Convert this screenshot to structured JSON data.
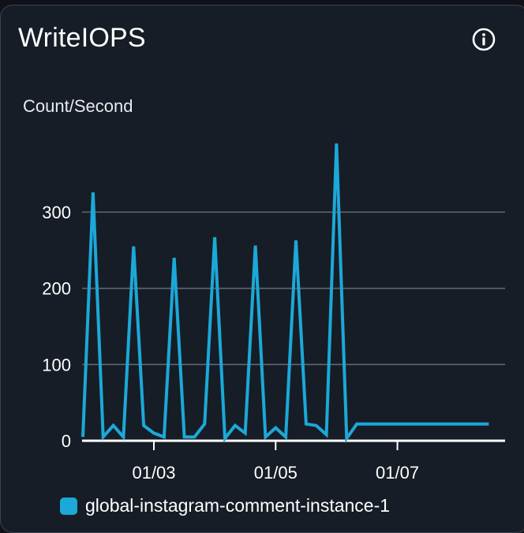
{
  "widget": {
    "title": "WriteIOPS",
    "info_icon": "info-icon",
    "unit_label": "Count/Second"
  },
  "colors": {
    "background": "#161d26",
    "series": "#1ca8d8",
    "grid": "#5f6673",
    "axis": "#ffffff",
    "text": "#ffffff"
  },
  "chart_data": {
    "type": "line",
    "title": "WriteIOPS",
    "ylabel": "Count/Second",
    "xlabel": "",
    "ylim": [
      0,
      400
    ],
    "yticks": [
      0,
      100,
      200,
      300
    ],
    "xlim": [
      "01/01 20:00",
      "01/08 20:00"
    ],
    "xticks": [
      "01/03",
      "01/05",
      "01/07"
    ],
    "grid": true,
    "legend": "bottom",
    "series": [
      {
        "name": "global-instagram-comment-instance-1",
        "color": "#1ca8d8",
        "x": [
          "01/01 20:00",
          "01/02 00:00",
          "01/02 04:00",
          "01/02 08:00",
          "01/02 12:00",
          "01/02 16:00",
          "01/02 20:00",
          "01/03 00:00",
          "01/03 04:00",
          "01/03 08:00",
          "01/03 12:00",
          "01/03 16:00",
          "01/03 20:00",
          "01/04 00:00",
          "01/04 04:00",
          "01/04 08:00",
          "01/04 12:00",
          "01/04 16:00",
          "01/04 20:00",
          "01/05 00:00",
          "01/05 04:00",
          "01/05 08:00",
          "01/05 12:00",
          "01/05 16:00",
          "01/05 20:00",
          "01/06 00:00",
          "01/06 04:00",
          "01/06 08:00",
          "01/06 12:00",
          "01/06 16:00",
          "01/06 20:00",
          "01/07 00:00",
          "01/07 04:00",
          "01/07 08:00",
          "01/07 12:00",
          "01/07 16:00",
          "01/07 20:00",
          "01/08 00:00",
          "01/08 04:00",
          "01/08 08:00",
          "01/08 12:00",
          "01/08 16:00"
        ],
        "y": [
          5,
          326,
          5,
          20,
          5,
          255,
          20,
          10,
          5,
          240,
          5,
          5,
          22,
          267,
          3,
          20,
          10,
          256,
          5,
          17,
          5,
          263,
          22,
          20,
          8,
          390,
          3,
          22,
          22,
          22,
          22,
          22,
          22,
          22,
          22,
          22,
          22,
          22,
          22,
          22,
          22,
          22
        ]
      }
    ]
  }
}
